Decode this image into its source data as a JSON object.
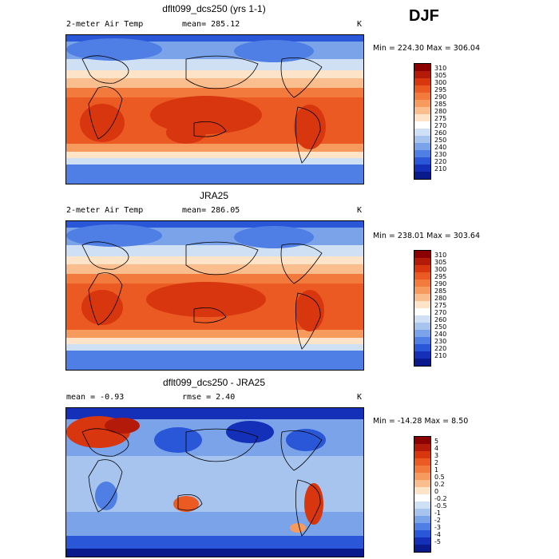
{
  "season": "DJF",
  "panels": [
    {
      "title": "dflt099_dcs250 (yrs 1-1)",
      "left_label": "2-meter Air Temp",
      "mean_text": "mean= 285.12",
      "unit": "K",
      "range_text": "Min = 224.30 Max = 306.04",
      "colorbar": {
        "labels": [
          "310",
          "305",
          "300",
          "295",
          "290",
          "285",
          "280",
          "275",
          "270",
          "260",
          "250",
          "240",
          "230",
          "220",
          "210"
        ],
        "colors": [
          "#8b0000",
          "#b41a0a",
          "#d8360f",
          "#ea5a22",
          "#f17a3c",
          "#f69a5e",
          "#f9bd8e",
          "#fde3c8",
          "#ffffff",
          "#cfe0f5",
          "#a7c4ef",
          "#7aa3ea",
          "#4f7ee4",
          "#2a56d8",
          "#1530b8",
          "#0a1a8c"
        ]
      }
    },
    {
      "title": "JRA25",
      "left_label": "2-meter Air Temp",
      "mean_text": "mean= 286.05",
      "unit": "K",
      "range_text": "Min = 238.01 Max = 303.64",
      "colorbar": {
        "labels": [
          "310",
          "305",
          "300",
          "295",
          "290",
          "285",
          "280",
          "275",
          "270",
          "260",
          "250",
          "240",
          "230",
          "220",
          "210"
        ],
        "colors": [
          "#8b0000",
          "#b41a0a",
          "#d8360f",
          "#ea5a22",
          "#f17a3c",
          "#f69a5e",
          "#f9bd8e",
          "#fde3c8",
          "#ffffff",
          "#cfe0f5",
          "#a7c4ef",
          "#7aa3ea",
          "#4f7ee4",
          "#2a56d8",
          "#1530b8",
          "#0a1a8c"
        ]
      }
    },
    {
      "title": "dflt099_dcs250 - JRA25",
      "left_label": "mean =   -0.93",
      "mean_text": "rmse =   2.40",
      "unit": "K",
      "range_text": "Min = -14.28 Max =   8.50",
      "colorbar": {
        "labels": [
          "5",
          "4",
          "3",
          "2",
          "1",
          "0.5",
          "0.2",
          "0",
          "-0.2",
          "-0.5",
          "-1",
          "-2",
          "-3",
          "-4",
          "-5"
        ],
        "colors": [
          "#8b0000",
          "#b41a0a",
          "#d8360f",
          "#ea5a22",
          "#f17a3c",
          "#f69a5e",
          "#f9bd8e",
          "#fde3c8",
          "#ffffff",
          "#cfe0f5",
          "#a7c4ef",
          "#7aa3ea",
          "#4f7ee4",
          "#2a56d8",
          "#1530b8",
          "#0a1a8c"
        ]
      }
    }
  ]
}
